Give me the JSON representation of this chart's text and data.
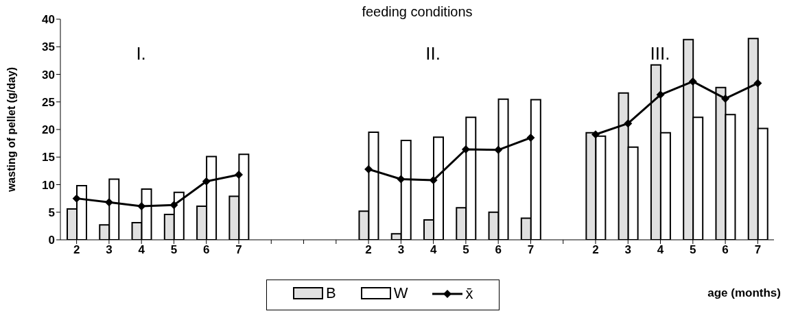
{
  "chart_data": {
    "type": "bar",
    "title": "feeding conditions",
    "xlabel": "age (months)",
    "ylabel": "wasting of pellet (g/day)",
    "annotations": [
      "I.",
      "II.",
      "III."
    ],
    "categories": [
      "2",
      "3",
      "4",
      "5",
      "6",
      "7",
      null,
      null,
      null,
      "2",
      "3",
      "4",
      "5",
      "6",
      "7",
      null,
      "2",
      "3",
      "4",
      "5",
      "6",
      "7"
    ],
    "series": [
      {
        "name": "B",
        "color": "#e0e0e0",
        "values": [
          5.6,
          2.7,
          3.1,
          4.6,
          6.1,
          7.9,
          null,
          null,
          null,
          5.2,
          1.1,
          3.6,
          5.8,
          5.0,
          3.9,
          null,
          19.4,
          26.6,
          31.7,
          36.3,
          27.6,
          36.5
        ]
      },
      {
        "name": "W",
        "color": "#ffffff",
        "values": [
          9.8,
          11.0,
          9.2,
          8.6,
          15.1,
          15.5,
          null,
          null,
          null,
          19.5,
          18.0,
          18.6,
          22.2,
          25.5,
          25.4,
          null,
          18.8,
          16.8,
          19.4,
          22.2,
          22.7,
          20.2
        ]
      },
      {
        "name": "x̄",
        "type": "line",
        "color": "#000000",
        "values": [
          7.5,
          6.8,
          6.1,
          6.3,
          10.6,
          11.8,
          null,
          null,
          null,
          12.8,
          11.0,
          10.8,
          16.4,
          16.3,
          18.5,
          null,
          19.1,
          21.1,
          26.3,
          28.7,
          25.6,
          28.4
        ]
      }
    ],
    "ylim": [
      0,
      40
    ],
    "yticks": [
      0,
      5,
      10,
      15,
      20,
      25,
      30,
      35,
      40
    ],
    "grid": false,
    "legend": "bottom",
    "marker": "diamond",
    "line_style": "solid"
  }
}
